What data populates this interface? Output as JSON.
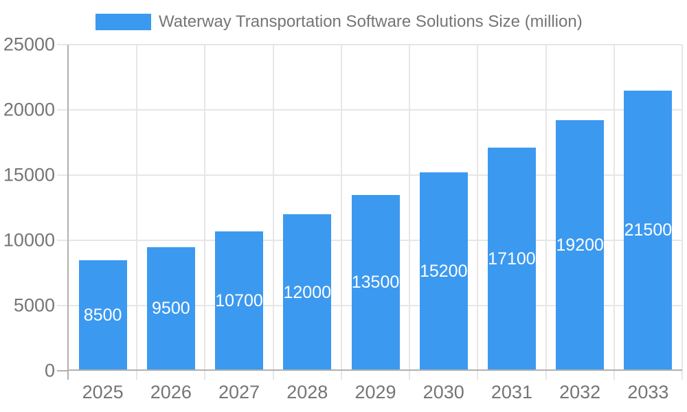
{
  "chart_data": {
    "type": "bar",
    "title": "Waterway Transportation Software Solutions Size (million)",
    "categories": [
      "2025",
      "2026",
      "2027",
      "2028",
      "2029",
      "2030",
      "2031",
      "2032",
      "2033"
    ],
    "values": [
      8500,
      9500,
      10700,
      12000,
      13500,
      15200,
      17100,
      19200,
      21500
    ],
    "xlabel": "",
    "ylabel": "",
    "ylim": [
      0,
      25000
    ],
    "yticks": [
      0,
      5000,
      10000,
      15000,
      20000,
      25000
    ],
    "grid": true,
    "value_labels_inside_bars": true,
    "legend": {
      "position": "top",
      "label": "Waterway Transportation Software Solutions Size (million)"
    },
    "colors": {
      "bar": "#3c99f0",
      "value_label": "#ffffff",
      "axis_text": "#757575",
      "grid_line": "#e6e6e6",
      "axis_line": "#b0b0b0",
      "background": "#ffffff"
    }
  }
}
